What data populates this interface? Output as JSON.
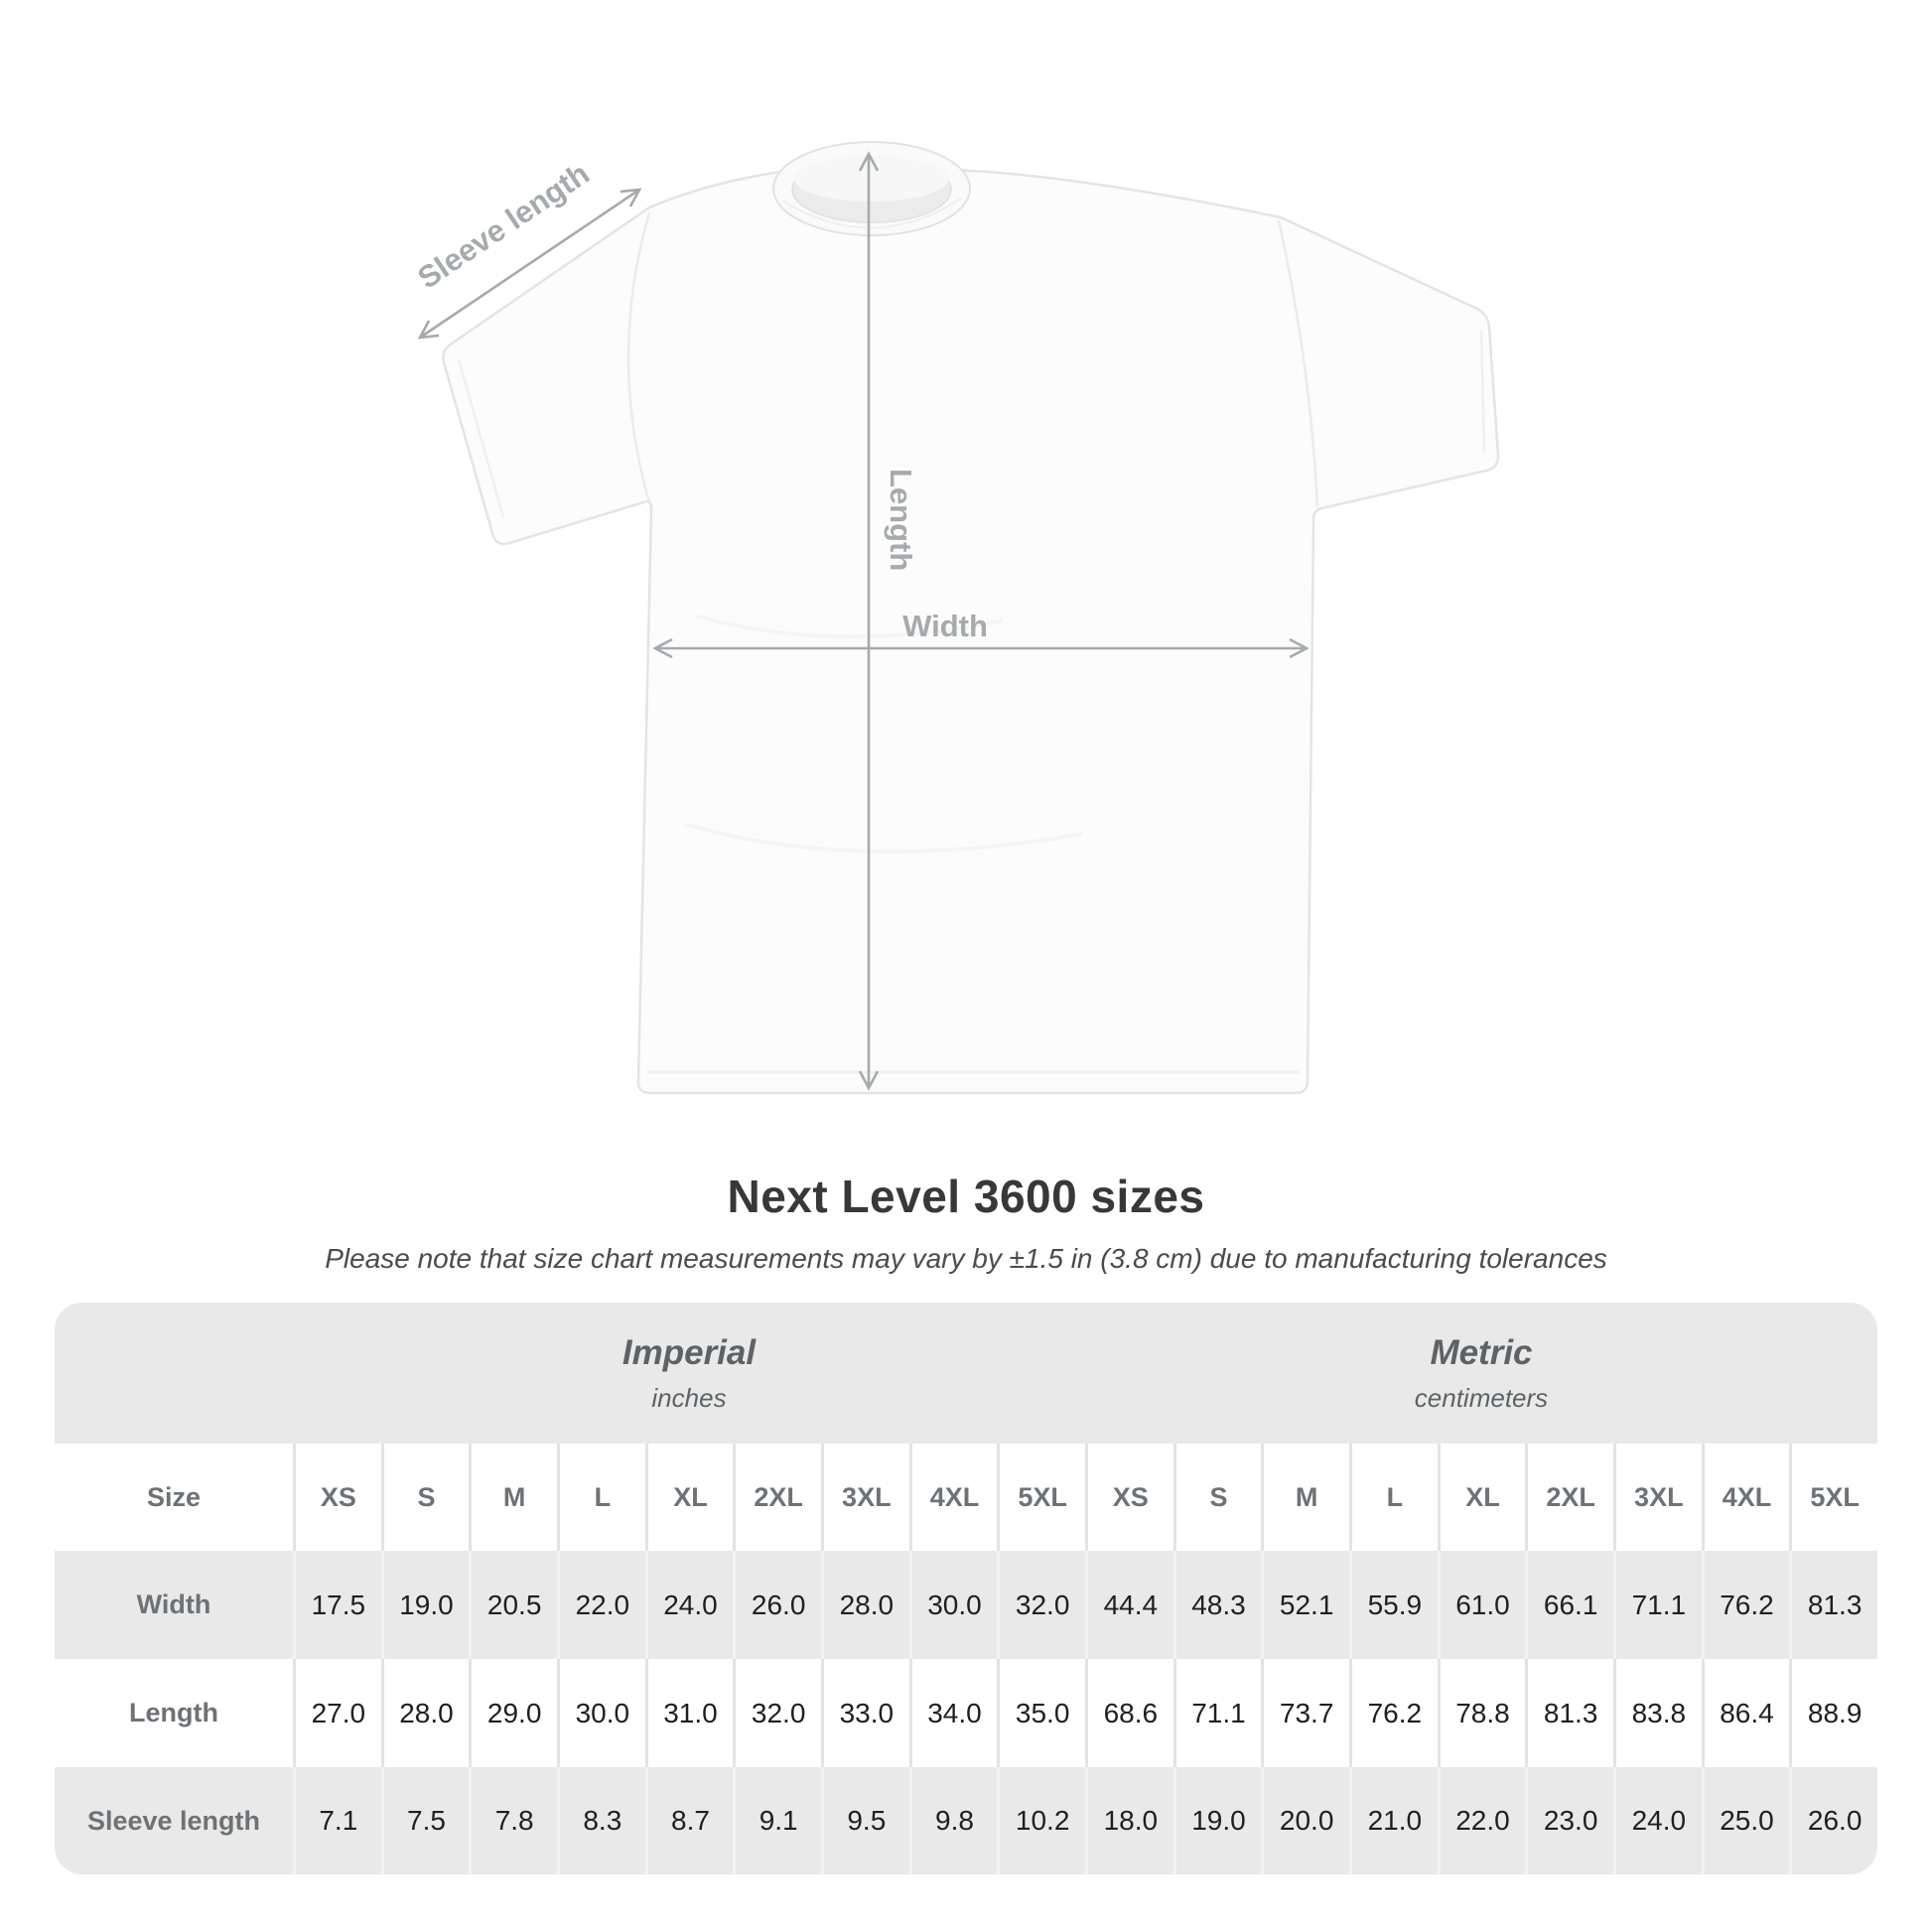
{
  "figure": {
    "sleeve_label": "Sleeve length",
    "length_label": "Length",
    "width_label": "Width"
  },
  "heading": {
    "title": "Next Level 3600 sizes",
    "subtitle": "Please note that size chart measurements may vary by ±1.5 in (3.8 cm) due to manufacturing tolerances"
  },
  "table": {
    "corner_label": "Size",
    "unit_groups": [
      {
        "name": "Imperial",
        "unit": "inches"
      },
      {
        "name": "Metric",
        "unit": "centimeters"
      }
    ],
    "sizes": [
      "XS",
      "S",
      "M",
      "L",
      "XL",
      "2XL",
      "3XL",
      "4XL",
      "5XL"
    ],
    "rows": [
      {
        "label": "Width",
        "imperial": [
          "17.5",
          "19.0",
          "20.5",
          "22.0",
          "24.0",
          "26.0",
          "28.0",
          "30.0",
          "32.0"
        ],
        "metric": [
          "44.4",
          "48.3",
          "52.1",
          "55.9",
          "61.0",
          "66.1",
          "71.1",
          "76.2",
          "81.3"
        ]
      },
      {
        "label": "Length",
        "imperial": [
          "27.0",
          "28.0",
          "29.0",
          "30.0",
          "31.0",
          "32.0",
          "33.0",
          "34.0",
          "35.0"
        ],
        "metric": [
          "68.6",
          "71.1",
          "73.7",
          "76.2",
          "78.8",
          "81.3",
          "83.8",
          "86.4",
          "88.9"
        ]
      },
      {
        "label": "Sleeve length",
        "imperial": [
          "7.1",
          "7.5",
          "7.8",
          "8.3",
          "8.7",
          "9.1",
          "9.5",
          "9.8",
          "10.2"
        ],
        "metric": [
          "18.0",
          "19.0",
          "20.0",
          "21.0",
          "22.0",
          "23.0",
          "24.0",
          "25.0",
          "26.0"
        ]
      }
    ]
  },
  "chart_data": {
    "type": "table",
    "title": "Next Level 3600 sizes",
    "note": "Please note that size chart measurements may vary by ±1.5 in (3.8 cm) due to manufacturing tolerances",
    "column_groups": [
      {
        "name": "Imperial",
        "unit": "inches",
        "sizes": [
          "XS",
          "S",
          "M",
          "L",
          "XL",
          "2XL",
          "3XL",
          "4XL",
          "5XL"
        ]
      },
      {
        "name": "Metric",
        "unit": "centimeters",
        "sizes": [
          "XS",
          "S",
          "M",
          "L",
          "XL",
          "2XL",
          "3XL",
          "4XL",
          "5XL"
        ]
      }
    ],
    "measurements": [
      {
        "measurement": "Width",
        "imperial_inches": [
          17.5,
          19.0,
          20.5,
          22.0,
          24.0,
          26.0,
          28.0,
          30.0,
          32.0
        ],
        "metric_cm": [
          44.4,
          48.3,
          52.1,
          55.9,
          61.0,
          66.1,
          71.1,
          76.2,
          81.3
        ]
      },
      {
        "measurement": "Length",
        "imperial_inches": [
          27.0,
          28.0,
          29.0,
          30.0,
          31.0,
          32.0,
          33.0,
          34.0,
          35.0
        ],
        "metric_cm": [
          68.6,
          71.1,
          73.7,
          76.2,
          78.8,
          81.3,
          83.8,
          86.4,
          88.9
        ]
      },
      {
        "measurement": "Sleeve length",
        "imperial_inches": [
          7.1,
          7.5,
          7.8,
          8.3,
          8.7,
          9.1,
          9.5,
          9.8,
          10.2
        ],
        "metric_cm": [
          18.0,
          19.0,
          20.0,
          21.0,
          22.0,
          23.0,
          24.0,
          25.0,
          26.0
        ]
      }
    ]
  },
  "colors": {
    "band_gray": "#e9e9e9",
    "label_gray": "#6d7276",
    "annotation_gray": "#a5aaad",
    "value_dark": "#1f1f1f",
    "title_dark": "#383838"
  }
}
